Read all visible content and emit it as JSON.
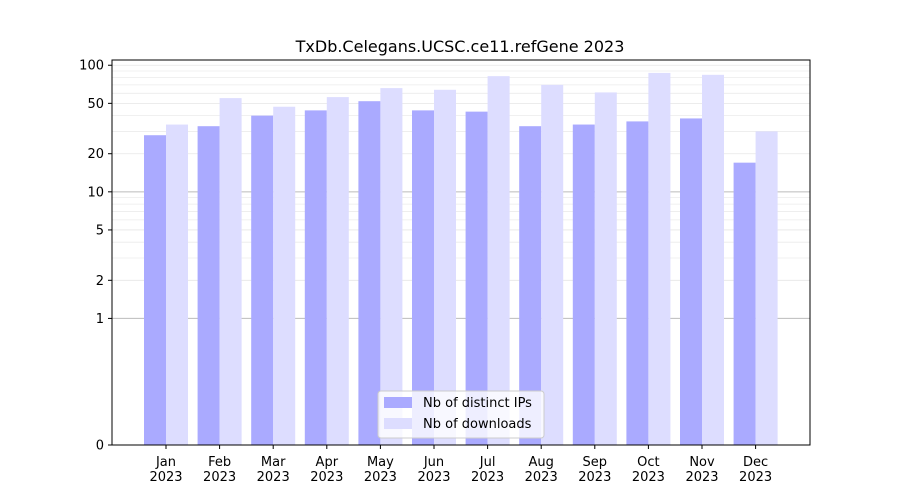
{
  "chart_data": {
    "type": "bar",
    "title": "TxDb.Celegans.UCSC.ce11.refGene 2023",
    "categories": [
      "Jan\n2023",
      "Feb\n2023",
      "Mar\n2023",
      "Apr\n2023",
      "May\n2023",
      "Jun\n2023",
      "Jul\n2023",
      "Aug\n2023",
      "Sep\n2023",
      "Oct\n2023",
      "Nov\n2023",
      "Dec\n2023"
    ],
    "series": [
      {
        "name": "Nb of distinct IPs",
        "color": "#aaaaff",
        "values": [
          28,
          33,
          40,
          44,
          52,
          44,
          43,
          33,
          34,
          36,
          38,
          17
        ]
      },
      {
        "name": "Nb of downloads",
        "color": "#ddddff",
        "values": [
          34,
          55,
          47,
          56,
          66,
          64,
          82,
          70,
          61,
          87,
          84,
          30
        ]
      }
    ],
    "yscale": "symlog",
    "ylim": [
      0,
      110
    ],
    "yticks": [
      0,
      1,
      2,
      5,
      10,
      20,
      50,
      100
    ],
    "legend": "lower center",
    "xlabel": "",
    "ylabel": "",
    "grid": true
  }
}
